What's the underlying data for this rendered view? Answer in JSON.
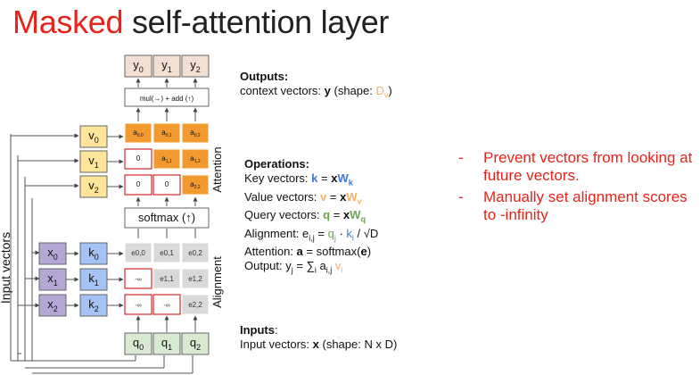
{
  "title": {
    "accent": "Masked",
    "rest": " self-attention layer"
  },
  "colors": {
    "accent": "#e8231b",
    "key": "#3c78d8",
    "value": "#f6b26b",
    "query": "#6aa84f",
    "attention_fill": "#f29a2e",
    "alignment_fill": "#d9d9d9",
    "output_fill": "#f4dfd3",
    "input_fill": "#b4a7d6",
    "key_fill": "#a4c2f4",
    "value_fill": "#ffe599",
    "query_fill": "#d9ead3",
    "mask_border": "#cc0000"
  },
  "diagram": {
    "input_label": "Input vectors",
    "attention_label": "Attention",
    "alignment_label": "Alignment",
    "softmax_label": "softmax (↑)",
    "mul_add_label": "mul(→) + add (↑)",
    "inputs": [
      "x0",
      "x1",
      "x2"
    ],
    "keys": [
      "k0",
      "k1",
      "k2"
    ],
    "values": [
      "v0",
      "v1",
      "v2"
    ],
    "queries": [
      "q0",
      "q1",
      "q2"
    ],
    "outputs": [
      "y0",
      "y1",
      "y2"
    ],
    "attention_grid": [
      [
        "a0,0",
        "a0,1",
        "a0,2"
      ],
      [
        "0",
        "a1,1",
        "a1,2"
      ],
      [
        "0",
        "0",
        "a2,2"
      ]
    ],
    "alignment_grid": [
      [
        "e0,0",
        "e0,1",
        "e0,2"
      ],
      [
        "-∞",
        "e1,1",
        "e1,2"
      ],
      [
        "-∞",
        "-∞",
        "e2,2"
      ]
    ]
  },
  "outputs_section": {
    "heading": "Outputs:",
    "line1_pre": "context vectors: ",
    "line1_bold": "y",
    "line1_post": " (shape: ",
    "line1_dim": "Dv",
    "line1_end": ")"
  },
  "operations": {
    "heading": "Operations:",
    "key_line": "Key vectors: k = xWk",
    "value_line": "Value vectors: v = xWv",
    "query_line": "Query vectors: q = xWq",
    "alignment_line": "Alignment: ei,j = qj · ki / √D",
    "attention_line": "Attention: a = softmax(e)",
    "output_line": "Output: yj = ∑i ai,j vi"
  },
  "inputs_section": {
    "heading": "Inputs",
    "heading_colon": ":",
    "line1_pre": "Input vectors: ",
    "line1_bold": "x",
    "line1_post": " (shape: N x D)"
  },
  "bullets": [
    "Prevent vectors from looking at future vectors.",
    "Manually set alignment scores to -infinity"
  ]
}
